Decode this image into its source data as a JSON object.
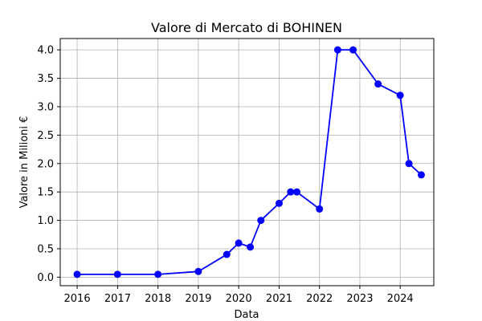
{
  "chart_data": {
    "type": "line",
    "title": "Valore di Mercato di BOHINEN",
    "xlabel": "Data",
    "ylabel": "Valore in Milioni €",
    "x_ticks": [
      "2016",
      "2017",
      "2018",
      "2019",
      "2020",
      "2021",
      "2022",
      "2023",
      "2024"
    ],
    "y_ticks": [
      "0.0",
      "0.5",
      "1.0",
      "1.5",
      "2.0",
      "2.5",
      "3.0",
      "3.5",
      "4.0"
    ],
    "xlim": [
      "2015-08-01",
      "2024-10-31"
    ],
    "ylim": [
      -0.15,
      4.2
    ],
    "grid": true,
    "series": [
      {
        "color": "#0000ff",
        "marker": "circle",
        "points": [
          {
            "x": "2016-01-01",
            "y": 0.05
          },
          {
            "x": "2016-12-31",
            "y": 0.05
          },
          {
            "x": "2018-01-01",
            "y": 0.05
          },
          {
            "x": "2019-01-01",
            "y": 0.1
          },
          {
            "x": "2019-09-15",
            "y": 0.4
          },
          {
            "x": "2020-01-01",
            "y": 0.6
          },
          {
            "x": "2020-04-15",
            "y": 0.53
          },
          {
            "x": "2020-07-20",
            "y": 1.0
          },
          {
            "x": "2021-01-01",
            "y": 1.3
          },
          {
            "x": "2021-04-15",
            "y": 1.5
          },
          {
            "x": "2021-06-10",
            "y": 1.5
          },
          {
            "x": "2022-01-01",
            "y": 1.2
          },
          {
            "x": "2022-06-15",
            "y": 4.0
          },
          {
            "x": "2022-11-01",
            "y": 4.0
          },
          {
            "x": "2023-06-15",
            "y": 3.4
          },
          {
            "x": "2024-01-01",
            "y": 3.2
          },
          {
            "x": "2024-03-20",
            "y": 2.0
          },
          {
            "x": "2024-07-10",
            "y": 1.8
          }
        ]
      }
    ]
  }
}
